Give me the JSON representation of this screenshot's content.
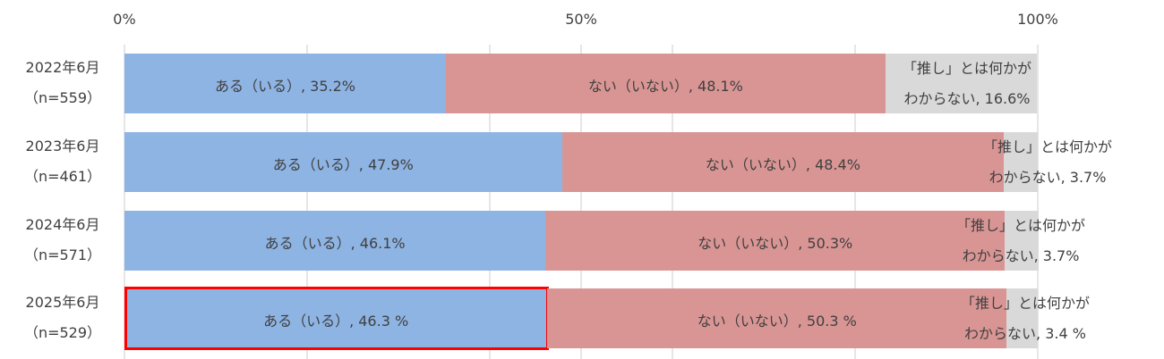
{
  "chart_data": {
    "type": "bar",
    "orientation": "horizontal",
    "stacked": "100%",
    "xlim": [
      0,
      100
    ],
    "x_ticks": [
      "0%",
      "50%",
      "100%"
    ],
    "grid": true,
    "categories": [
      {
        "line1": "2022年6月",
        "line2": "（n=559）"
      },
      {
        "line1": "2023年6月",
        "line2": "（n=461）"
      },
      {
        "line1": "2024年6月",
        "line2": "（n=571）"
      },
      {
        "line1": "2025年6月",
        "line2": "（n=529）"
      }
    ],
    "series": [
      {
        "color": "#8EB4E3",
        "values": [
          35.2,
          47.9,
          46.1,
          46.3
        ],
        "labels": [
          "ある（いる）, 35.2%",
          "ある（いる）, 47.9%",
          "ある（いる）, 46.1%",
          "ある（いる）, 46.3 %"
        ]
      },
      {
        "color": "#D99594",
        "values": [
          48.1,
          48.4,
          50.3,
          50.3
        ],
        "labels": [
          "ない（いない）, 48.1%",
          "ない（いない）, 48.4%",
          "ない（いない）, 50.3%",
          "ない（いない）, 50.3 %"
        ]
      },
      {
        "color": "#D9D9D9",
        "values": [
          16.6,
          3.7,
          3.7,
          3.4
        ],
        "labels": [
          [
            "「推し」とは何かが",
            "わからない, 16.6%"
          ],
          [
            "「推し」とは何かが",
            "わからない, 3.7%"
          ],
          [
            "「推し」とは何かが",
            "わからない, 3.7%"
          ],
          [
            "「推し」とは何かが",
            "わからない, 3.4 %"
          ]
        ]
      }
    ],
    "highlight": {
      "category_index": 3,
      "series_index": 0,
      "color": "#FF0000"
    }
  }
}
